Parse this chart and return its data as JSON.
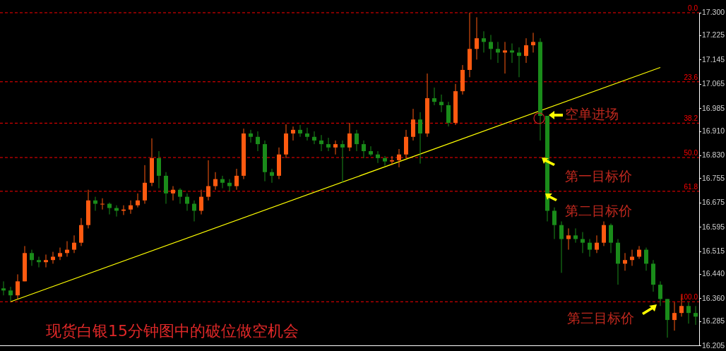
{
  "chart_data": {
    "type": "candlestick",
    "title": "现货白银15分钟图中的破位做空机会",
    "categories": [
      null,
      null,
      null,
      null,
      null,
      null,
      null,
      null,
      null,
      null,
      null,
      null,
      null,
      null,
      null,
      null,
      null,
      null,
      null,
      null,
      null,
      null,
      null,
      null,
      null,
      null,
      null,
      null,
      null,
      null,
      null,
      null,
      null,
      null,
      null,
      null,
      null,
      null,
      null,
      null,
      null,
      null,
      null,
      null,
      null,
      null,
      null,
      null,
      null,
      null,
      null,
      null,
      null,
      null,
      null,
      null,
      null,
      null,
      null,
      null,
      null,
      null,
      null,
      null,
      null,
      null,
      null,
      null,
      null,
      null,
      null,
      null,
      null,
      null,
      null,
      null,
      null,
      null,
      null,
      null,
      null,
      null,
      null,
      null,
      null,
      null,
      null,
      null,
      null,
      null,
      null,
      null,
      null,
      null,
      null,
      null,
      null,
      null,
      null
    ],
    "ohlc": [
      [
        16.394,
        16.417,
        16.371,
        16.387
      ],
      [
        16.387,
        16.399,
        16.352,
        16.371
      ],
      [
        16.371,
        16.44,
        16.359,
        16.417
      ],
      [
        16.417,
        16.533,
        16.417,
        16.51
      ],
      [
        16.51,
        16.521,
        16.468,
        16.487
      ],
      [
        16.487,
        16.498,
        16.463,
        16.48
      ],
      [
        16.48,
        16.505,
        16.463,
        16.487
      ],
      [
        16.487,
        16.514,
        16.475,
        16.498
      ],
      [
        16.498,
        16.528,
        16.487,
        16.51
      ],
      [
        16.51,
        16.549,
        16.498,
        16.521
      ],
      [
        16.521,
        16.568,
        16.51,
        16.544
      ],
      [
        16.544,
        16.625,
        16.533,
        16.602
      ],
      [
        16.602,
        16.718,
        16.591,
        16.683
      ],
      [
        16.683,
        16.695,
        16.649,
        16.672
      ],
      [
        16.672,
        16.69,
        16.653,
        16.672
      ],
      [
        16.672,
        16.676,
        16.637,
        16.658
      ],
      [
        16.658,
        16.667,
        16.63,
        16.649
      ],
      [
        16.649,
        16.667,
        16.635,
        16.653
      ],
      [
        16.653,
        16.683,
        16.639,
        16.667
      ],
      [
        16.667,
        16.706,
        16.66,
        16.683
      ],
      [
        16.683,
        16.799,
        16.672,
        16.741
      ],
      [
        16.741,
        16.887,
        16.73,
        16.822
      ],
      [
        16.822,
        16.845,
        16.723,
        16.764
      ],
      [
        16.764,
        16.776,
        16.672,
        16.706
      ],
      [
        16.706,
        16.73,
        16.683,
        16.718
      ],
      [
        16.718,
        16.723,
        16.672,
        16.695
      ],
      [
        16.695,
        16.706,
        16.649,
        16.672
      ],
      [
        16.672,
        16.683,
        16.614,
        16.649
      ],
      [
        16.649,
        16.718,
        16.637,
        16.695
      ],
      [
        16.695,
        16.815,
        16.683,
        16.73
      ],
      [
        16.73,
        16.776,
        16.718,
        16.753
      ],
      [
        16.753,
        16.764,
        16.723,
        16.741
      ],
      [
        16.741,
        16.753,
        16.713,
        16.73
      ],
      [
        16.73,
        16.787,
        16.718,
        16.764
      ],
      [
        16.764,
        16.919,
        16.753,
        16.903
      ],
      [
        16.903,
        16.915,
        16.873,
        16.892
      ],
      [
        16.892,
        16.91,
        16.845,
        16.868
      ],
      [
        16.868,
        16.88,
        16.746,
        16.776
      ],
      [
        16.776,
        16.787,
        16.741,
        16.764
      ],
      [
        16.764,
        16.857,
        16.753,
        16.834
      ],
      [
        16.834,
        16.933,
        16.822,
        16.903
      ],
      [
        16.903,
        16.926,
        16.88,
        16.915
      ],
      [
        16.915,
        16.931,
        16.892,
        16.903
      ],
      [
        16.903,
        16.922,
        16.88,
        16.892
      ],
      [
        16.892,
        16.91,
        16.868,
        16.88
      ],
      [
        16.88,
        16.898,
        16.845,
        16.868
      ],
      [
        16.868,
        16.889,
        16.845,
        16.857
      ],
      [
        16.857,
        16.88,
        16.834,
        16.868
      ],
      [
        16.868,
        16.88,
        16.741,
        16.857
      ],
      [
        16.857,
        16.938,
        16.845,
        16.903
      ],
      [
        16.903,
        16.915,
        16.845,
        16.868
      ],
      [
        16.868,
        16.88,
        16.822,
        16.845
      ],
      [
        16.845,
        16.861,
        16.829,
        16.834
      ],
      [
        16.834,
        16.845,
        16.806,
        16.822
      ],
      [
        16.822,
        16.829,
        16.797,
        16.811
      ],
      [
        16.811,
        16.829,
        16.799,
        16.815
      ],
      [
        16.815,
        16.852,
        16.792,
        16.834
      ],
      [
        16.834,
        16.915,
        16.822,
        16.892
      ],
      [
        16.892,
        16.984,
        16.88,
        16.949
      ],
      [
        16.949,
        16.973,
        16.804,
        16.903
      ],
      [
        16.903,
        17.1,
        16.892,
        17.019
      ],
      [
        17.019,
        17.054,
        16.996,
        17.007
      ],
      [
        17.007,
        17.031,
        16.973,
        16.996
      ],
      [
        16.996,
        17.007,
        16.926,
        16.938
      ],
      [
        16.938,
        17.066,
        16.931,
        17.042
      ],
      [
        17.042,
        17.128,
        17.031,
        17.112
      ],
      [
        17.112,
        17.3,
        17.088,
        17.181
      ],
      [
        17.181,
        17.285,
        17.146,
        17.216
      ],
      [
        17.216,
        17.239,
        17.169,
        17.204
      ],
      [
        17.204,
        17.227,
        17.146,
        17.181
      ],
      [
        17.181,
        17.204,
        17.135,
        17.169
      ],
      [
        17.169,
        17.204,
        17.1,
        17.176
      ],
      [
        17.176,
        17.199,
        17.135,
        17.169
      ],
      [
        17.169,
        17.186,
        17.088,
        17.158
      ],
      [
        17.158,
        17.216,
        17.135,
        17.193
      ],
      [
        17.193,
        17.234,
        17.169,
        17.204
      ],
      [
        17.204,
        17.216,
        16.88,
        16.961
      ],
      [
        16.961,
        16.961,
        16.614,
        16.649
      ],
      [
        16.649,
        16.66,
        16.556,
        16.602
      ],
      [
        16.602,
        16.614,
        16.445,
        16.556
      ],
      [
        16.556,
        16.591,
        16.521,
        16.568
      ],
      [
        16.568,
        16.591,
        16.544,
        16.556
      ],
      [
        16.556,
        16.579,
        16.51,
        16.544
      ],
      [
        16.544,
        16.556,
        16.498,
        16.521
      ],
      [
        16.521,
        16.568,
        16.51,
        16.544
      ],
      [
        16.544,
        16.614,
        16.533,
        16.602
      ],
      [
        16.602,
        16.607,
        16.51,
        16.544
      ],
      [
        16.544,
        16.556,
        16.406,
        16.475
      ],
      [
        16.475,
        16.51,
        16.452,
        16.487
      ],
      [
        16.487,
        16.521,
        16.468,
        16.498
      ],
      [
        16.498,
        16.533,
        16.491,
        16.521
      ],
      [
        16.521,
        16.528,
        16.452,
        16.475
      ],
      [
        16.475,
        16.487,
        16.383,
        16.406
      ],
      [
        16.406,
        16.417,
        16.336,
        16.359
      ],
      [
        16.359,
        16.359,
        16.232,
        16.29
      ],
      [
        16.29,
        16.348,
        16.255,
        16.313
      ],
      [
        16.313,
        16.371,
        16.301,
        16.336
      ],
      [
        16.336,
        16.348,
        16.278,
        16.313
      ],
      [
        16.313,
        16.336,
        16.274,
        16.301
      ]
    ],
    "colors": [
      "#1a8c1a",
      "#1a8c1a",
      "#ff5a10",
      "#ff5a10",
      "#1a8c1a",
      "#1a8c1a",
      "#ff5a10",
      "#ff5a10",
      "#ff5a10",
      "#ff5a10",
      "#ff5a10",
      "#ff5a10",
      "#ff5a10",
      "#1a8c1a",
      "#ff5a10",
      "#1a8c1a",
      "#1a8c1a",
      "#ff5a10",
      "#ff5a10",
      "#ff5a10",
      "#ff5a10",
      "#ff5a10",
      "#1a8c1a",
      "#1a8c1a",
      "#ff5a10",
      "#1a8c1a",
      "#1a8c1a",
      "#1a8c1a",
      "#ff5a10",
      "#ff5a10",
      "#ff5a10",
      "#1a8c1a",
      "#1a8c1a",
      "#ff5a10",
      "#ff5a10",
      "#1a8c1a",
      "#1a8c1a",
      "#1a8c1a",
      "#1a8c1a",
      "#ff5a10",
      "#ff5a10",
      "#ff5a10",
      "#1a8c1a",
      "#1a8c1a",
      "#1a8c1a",
      "#1a8c1a",
      "#1a8c1a",
      "#ff5a10",
      "#1a8c1a",
      "#ff5a10",
      "#1a8c1a",
      "#1a8c1a",
      "#1a8c1a",
      "#1a8c1a",
      "#1a8c1a",
      "#ff5a10",
      "#ff5a10",
      "#ff5a10",
      "#ff5a10",
      "#1a8c1a",
      "#ff5a10",
      "#1a8c1a",
      "#1a8c1a",
      "#1a8c1a",
      "#ff5a10",
      "#ff5a10",
      "#ff5a10",
      "#ff5a10",
      "#1a8c1a",
      "#1a8c1a",
      "#1a8c1a",
      "#ff5a10",
      "#1a8c1a",
      "#1a8c1a",
      "#ff5a10",
      "#ff5a10",
      "#1a8c1a",
      "#1a8c1a",
      "#1a8c1a",
      "#1a8c1a",
      "#ff5a10",
      "#1a8c1a",
      "#1a8c1a",
      "#1a8c1a",
      "#ff5a10",
      "#ff5a10",
      "#1a8c1a",
      "#1a8c1a",
      "#ff5a10",
      "#ff5a10",
      "#ff5a10",
      "#1a8c1a",
      "#1a8c1a",
      "#1a8c1a",
      "#1a8c1a",
      "#ff5a10",
      "#ff5a10",
      "#1a8c1a",
      "#1a8c1a"
    ],
    "series": [
      {
        "type": "line",
        "color": "#ffff00",
        "values": [
          null,
          16.35,
          null,
          null,
          null,
          null,
          null,
          null,
          null,
          null,
          null,
          null,
          null,
          null,
          null,
          null,
          null,
          null,
          null,
          null,
          null,
          null,
          null,
          null,
          null,
          null,
          null,
          null,
          null,
          null,
          null,
          null,
          null,
          null,
          null,
          null,
          null,
          null,
          null,
          null,
          null,
          null,
          null,
          null,
          null,
          null,
          null,
          null,
          null,
          null,
          null,
          null,
          null,
          null,
          null,
          null,
          null,
          null,
          null,
          null,
          null,
          null,
          null,
          null,
          null,
          null,
          null,
          null,
          null,
          null,
          null,
          null,
          null,
          null,
          null,
          null,
          null,
          null,
          null,
          null,
          null,
          null,
          null,
          null,
          null,
          null,
          null,
          null,
          null,
          null,
          null,
          null,
          null,
          17.12,
          null,
          null,
          null,
          null,
          null
        ]
      }
    ],
    "ylim": [
      16.205,
      17.3
    ],
    "yticks": [
      {
        "value": 17.3,
        "label": "17.300"
      },
      17.225,
      17.145,
      17.065,
      16.985,
      {
        "value": 16.91,
        "label": "16.910"
      },
      {
        "value": 16.83,
        "label": "16.830"
      },
      16.755,
      16.675,
      16.595,
      16.515,
      {
        "value": 16.44,
        "label": "16.440"
      },
      {
        "value": 16.36,
        "label": "16.360"
      },
      16.285,
      16.205
    ],
    "ref_lines": [
      {
        "axis": "y",
        "value": 17.3,
        "color": "#ff0000",
        "line_style": "dashed"
      },
      {
        "axis": "y",
        "value": 17.073,
        "color": "#ff0000",
        "line_style": "dashed"
      },
      {
        "axis": "y",
        "value": 16.937,
        "color": "#ff0000",
        "line_style": "dashed"
      },
      {
        "axis": "y",
        "value": 16.824,
        "color": "#ff0000",
        "line_style": "dashed"
      },
      {
        "axis": "y",
        "value": 16.713,
        "color": "#ff0000",
        "line_style": "dashed"
      },
      {
        "axis": "y",
        "value": 16.35,
        "color": "#ff0000",
        "line_style": "dashed"
      }
    ],
    "annotations": [
      "空单进场",
      "第一目标价",
      "第二目标价",
      "第三目标价",
      {
        "text": "0.0",
        "y": 17.3
      },
      {
        "text": "23.6",
        "y": 17.073
      },
      {
        "text": "38.2",
        "y": 16.937
      },
      {
        "text": "50.0",
        "y": 16.824
      },
      {
        "text": "61.8",
        "y": 16.713
      },
      {
        "text": "100.0",
        "y": 16.35
      }
    ]
  }
}
